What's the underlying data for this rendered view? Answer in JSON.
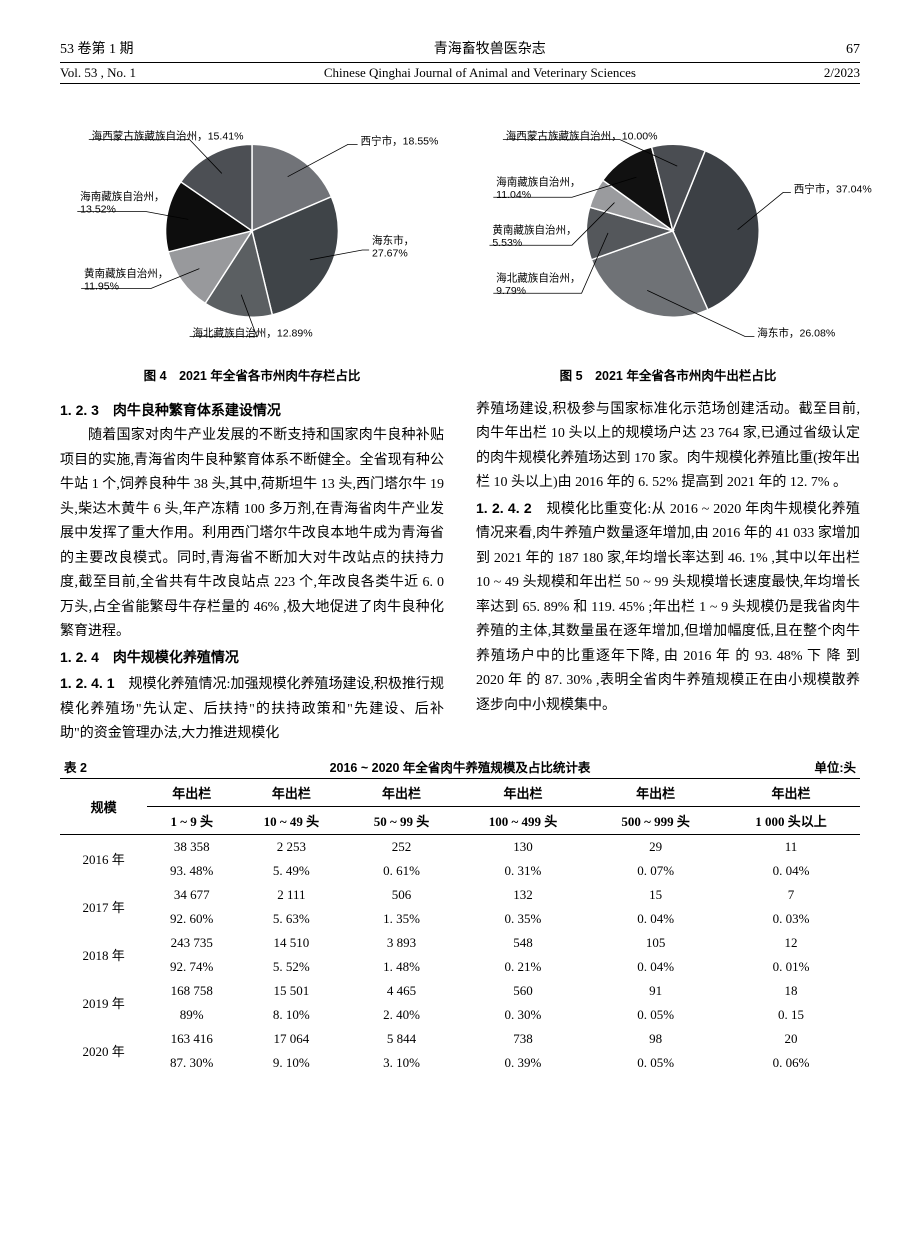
{
  "header": {
    "vol_issue_cn": "53 卷第 1 期",
    "vol_issue_en": "Vol. 53 , No. 1",
    "journal_cn": "青海畜牧兽医杂志",
    "journal_en": "Chinese Qinghai Journal of Animal and Veterinary Sciences",
    "page": "67",
    "date": "2/2023"
  },
  "pie1": {
    "caption": "图 4　2021 年全省各市州肉牛存栏占比",
    "background_color": "#ffffff",
    "label_fontsize": 11,
    "slices": [
      {
        "label": "西宁市，18.55%",
        "value": 18.55,
        "color": "#717378"
      },
      {
        "label": "海东市，\n27.67%",
        "value": 27.67,
        "color": "#3f4448"
      },
      {
        "label": "海北藏族自治州，12.89%",
        "value": 12.89,
        "color": "#5b5f62"
      },
      {
        "label": "黄南藏族自治州，\n11.95%",
        "value": 11.95,
        "color": "#98999c"
      },
      {
        "label": "海南藏族自治州，\n13.52%",
        "value": 13.52,
        "color": "#0d0d0d"
      },
      {
        "label": "海西蒙古族藏族自治州，15.41%",
        "value": 15.41,
        "color": "#4c4f54"
      }
    ]
  },
  "pie2": {
    "caption": "图 5　2021 年全省各市州肉牛出栏占比",
    "background_color": "#ffffff",
    "label_fontsize": 11,
    "slices": [
      {
        "label": "西宁市，37.04%",
        "value": 37.04,
        "color": "#3c4045"
      },
      {
        "label": "海东市，26.08%",
        "value": 26.08,
        "color": "#6f7276"
      },
      {
        "label": "海北藏族自治州，\n9.79%",
        "value": 9.79,
        "color": "#54575b"
      },
      {
        "label": "黄南藏族自治州，\n5.53%",
        "value": 5.53,
        "color": "#9a9b9e"
      },
      {
        "label": "海南藏族自治州，\n11.04%",
        "value": 11.04,
        "color": "#111111"
      },
      {
        "label": "海西蒙古族藏族自治州，10.00%",
        "value": 10.0,
        "color": "#4a4d52"
      }
    ]
  },
  "section": {
    "s123_title": "1. 2. 3　肉牛良种繁育体系建设情况",
    "p1": "随着国家对肉牛产业发展的不断支持和国家肉牛良种补贴项目的实施,青海省肉牛良种繁育体系不断健全。全省现有种公牛站 1 个,饲养良种牛 38 头,其中,荷斯坦牛 13 头,西门塔尔牛 19 头,柴达木黄牛 6 头,年产冻精 100 多万剂,在青海省肉牛产业发展中发挥了重大作用。利用西门塔尔牛改良本地牛成为青海省的主要改良模式。同时,青海省不断加大对牛改站点的扶持力度,截至目前,全省共有牛改良站点 223 个,年改良各类牛近 6. 0 万头,占全省能繁母牛存栏量的 46% ,极大地促进了肉牛良种化繁育进程。",
    "s124_title": "1. 2. 4　肉牛规模化养殖情况",
    "s1241_title": "1. 2. 4. 1　",
    "p2": "规模化养殖情况:加强规模化养殖场建设,积极推行规模化养殖场\"先认定、后扶持\"的扶持政策和\"先建设、后补助\"的资金管理办法,大力推进规模化",
    "p3": "养殖场建设,积极参与国家标准化示范场创建活动。截至目前,肉牛年出栏 10 头以上的规模场户达 23 764 家,已通过省级认定的肉牛规模化养殖场达到 170 家。肉牛规模化养殖比重(按年出栏 10 头以上)由 2016 年的 6. 52% 提高到 2021 年的 12. 7% 。",
    "s1242_title": "1. 2. 4. 2　",
    "p4": "规模化比重变化:从 2016 ~ 2020 年肉牛规模化养殖情况来看,肉牛养殖户数量逐年增加,由 2016 年的 41 033 家增加到 2021 年的 187 180 家,年均增长率达到 46. 1% ,其中以年出栏 10 ~ 49 头规模和年出栏 50 ~ 99 头规模增长速度最快,年均增长率达到 65. 89% 和 119. 45% ;年出栏 1 ~ 9 头规模仍是我省肉牛养殖的主体,其数量虽在逐年增加,但增加幅度低,且在整个肉牛养殖场户中的比重逐年下降, 由 2016 年 的 93. 48% 下 降 到 2020 年 的 87. 30% ,表明全省肉牛养殖规模正在由小规模散养逐步向中小规模集中。"
  },
  "table": {
    "label": "表 2",
    "title": "2016 ~ 2020 年全省肉牛养殖规模及占比统计表",
    "unit": "单位:头",
    "header_top": "年出栏",
    "row_header": "规模",
    "columns": [
      "1 ~ 9 头",
      "10 ~ 49 头",
      "50 ~ 99 头",
      "100 ~ 499 头",
      "500 ~ 999 头",
      "1 000 头以上"
    ],
    "rows": [
      {
        "year": "2016 年",
        "vals": [
          "38 358",
          "2 253",
          "252",
          "130",
          "29",
          "11"
        ],
        "pcts": [
          "93. 48%",
          "5. 49%",
          "0. 61%",
          "0. 31%",
          "0. 07%",
          "0. 04%"
        ]
      },
      {
        "year": "2017 年",
        "vals": [
          "34 677",
          "2 111",
          "506",
          "132",
          "15",
          "7"
        ],
        "pcts": [
          "92. 60%",
          "5. 63%",
          "1. 35%",
          "0. 35%",
          "0. 04%",
          "0. 03%"
        ]
      },
      {
        "year": "2018 年",
        "vals": [
          "243 735",
          "14 510",
          "3 893",
          "548",
          "105",
          "12"
        ],
        "pcts": [
          "92. 74%",
          "5. 52%",
          "1. 48%",
          "0. 21%",
          "0. 04%",
          "0. 01%"
        ]
      },
      {
        "year": "2019 年",
        "vals": [
          "168 758",
          "15 501",
          "4 465",
          "560",
          "91",
          "18"
        ],
        "pcts": [
          "89%",
          "8. 10%",
          "2. 40%",
          "0. 30%",
          "0. 05%",
          "0. 15"
        ]
      },
      {
        "year": "2020 年",
        "vals": [
          "163 416",
          "17 064",
          "5 844",
          "738",
          "98",
          "20"
        ],
        "pcts": [
          "87. 30%",
          "9. 10%",
          "3. 10%",
          "0. 39%",
          "0. 05%",
          "0. 06%"
        ]
      }
    ]
  }
}
